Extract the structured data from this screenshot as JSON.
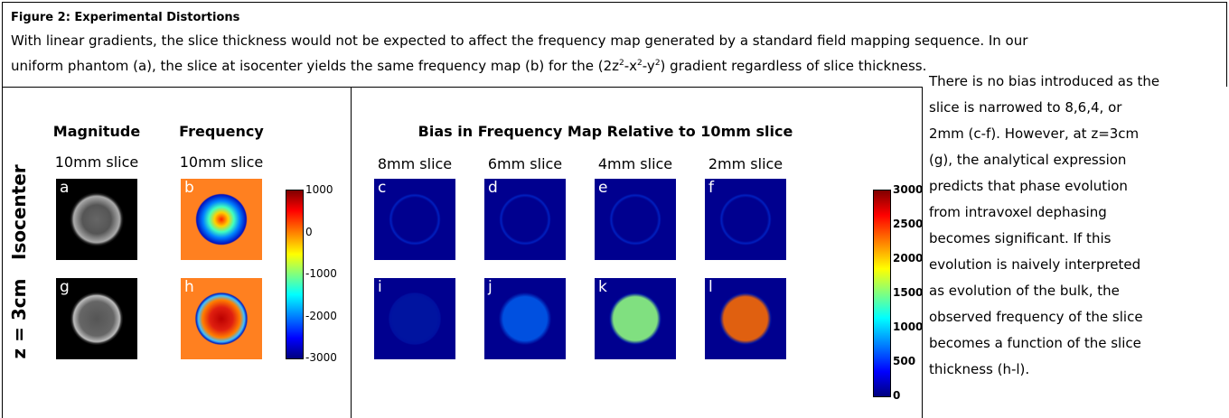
{
  "header": {
    "title": "Figure 2:  Experimental Distortions",
    "caption": {
      "line1": "With linear gradients, the slice thickness would not be expected to affect the frequency map generated by a standard field mapping sequence.  In our",
      "line2_start": "uniform phantom (a), the slice at isocenter yields the same frequency map (b) for the (2z",
      "sup1": "2",
      "mid1": "-x",
      "sup2": "2",
      "mid2": "-y",
      "sup3": "2",
      "line2_end": ") gradient regardless of slice thickness."
    }
  },
  "left_panel": {
    "columns": [
      {
        "title": "Magnitude",
        "subtitle": "10mm slice"
      },
      {
        "title": "Frequency",
        "subtitle": "10mm slice"
      }
    ],
    "rows": [
      "Isocenter",
      "z = 3cm"
    ],
    "letters": [
      [
        "a",
        "b"
      ],
      [
        "g",
        "h"
      ]
    ],
    "colorbar_labels": [
      "1000",
      "0",
      "-1000",
      "-2000",
      "-3000"
    ]
  },
  "middle_panel": {
    "title": "Bias in Frequency Map Relative to 10mm slice",
    "columns": [
      "8mm slice",
      "6mm slice",
      "4mm slice",
      "2mm slice"
    ],
    "letters": [
      [
        "c",
        "d",
        "e",
        "f"
      ],
      [
        "i",
        "j",
        "k",
        "l"
      ]
    ],
    "colorbar_labels": [
      "3000",
      "2500",
      "2000",
      "1500",
      "1000",
      "500",
      "0"
    ]
  },
  "side_text": [
    "There is no bias introduced as the",
    "slice is narrowed to 8,6,4, or",
    "2mm (c-f).  However, at z=3cm",
    "(g), the analytical expression",
    "predicts that phase evolution",
    "from intravoxel dephasing",
    "becomes significant.  If this",
    "evolution is naively interpreted",
    "as evolution of the bulk, the",
    "observed frequency of the slice",
    "becomes a function of the slice",
    "thickness (h-l)."
  ]
}
